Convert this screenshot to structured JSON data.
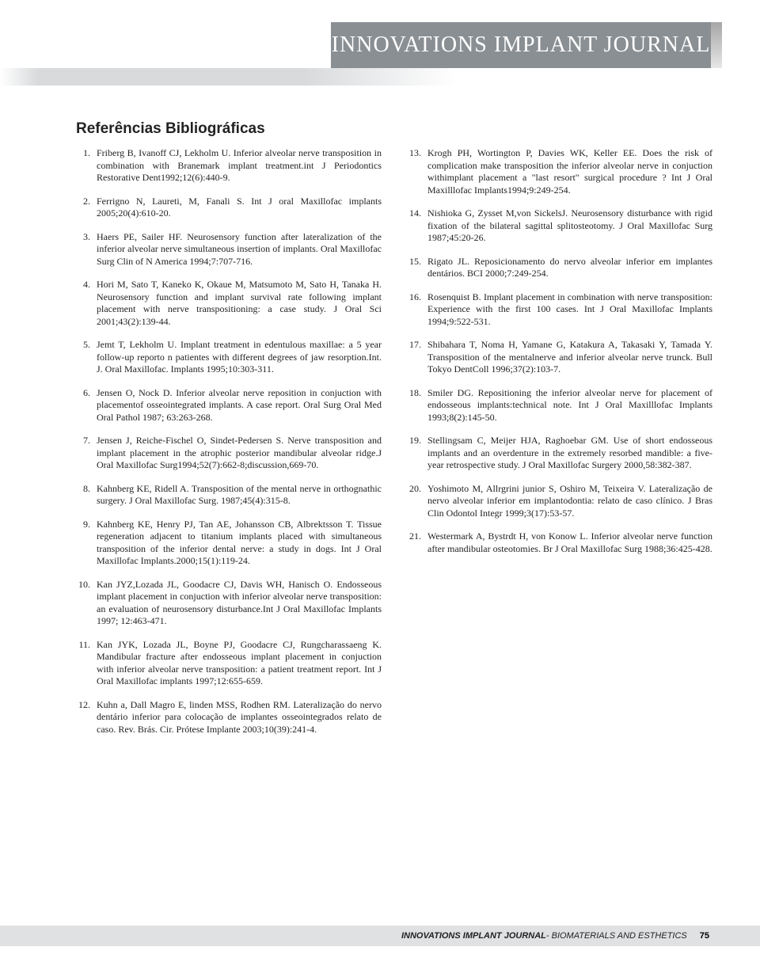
{
  "header": {
    "journal_title": "INNOVATIONS IMPLANT JOURNAL"
  },
  "section": {
    "title": "Referências Bibliográficas"
  },
  "references_col1": [
    {
      "n": "1.",
      "t": "Friberg B, Ivanoff CJ, Lekholm U. Inferior alveolar nerve transposition in combination with Branemark implant treatment.int J Periodontics Restorative Dent1992;12(6):440-9."
    },
    {
      "n": "2.",
      "t": "Ferrigno N, Laureti, M, Fanali S. Int J oral Maxillofac implants 2005;20(4):610-20."
    },
    {
      "n": "3.",
      "t": "Haers PE, Sailer HF. Neurosensory function after lateralization of the inferior alveolar nerve simultaneous insertion of implants. Oral Maxillofac Surg Clin of N America 1994;7:707-716."
    },
    {
      "n": "4.",
      "t": "Hori M, Sato T, Kaneko K, Okaue M, Matsumoto M, Sato H, Tanaka H. Neurosensory function and implant survival rate following implant placement with nerve transpositioning: a case study. J Oral Sci 2001;43(2):139-44."
    },
    {
      "n": "5.",
      "t": "Jemt T, Lekholm U. Implant treatment in edentulous maxillae: a 5 year follow-up reporto n patientes with different degrees of jaw resorption.Int. J. Oral Maxillofac. Implants 1995;10:303-311."
    },
    {
      "n": "6.",
      "t": "Jensen O, Nock D. Inferior alveolar nerve reposition in conjuction with placementof osseointegrated implants. A case report. Oral Surg Oral Med Oral Pathol 1987; 63:263-268."
    },
    {
      "n": "7.",
      "t": "Jensen J, Reiche-Fischel O, Sindet-Pedersen S. Nerve transposition and implant placement in the atrophic posterior mandibular alveolar ridge.J Oral Maxillofac Surg1994;52(7):662-8;discussion,669-70."
    },
    {
      "n": "8.",
      "t": "Kahnberg KE, Ridell A. Transposition of the mental nerve in orthognathic surgery. J Oral Maxillofac Surg. 1987;45(4):315-8."
    },
    {
      "n": "9.",
      "t": "Kahnberg KE, Henry PJ, Tan AE, Johansson CB, Albrektsson T. Tissue regeneration adjacent to titanium implants placed with simultaneous transposition of the inferior dental nerve: a study in dogs. Int J Oral Maxillofac Implants.2000;15(1):119-24."
    }
  ],
  "references_col2": [
    {
      "n": "13.",
      "t": "Krogh PH, Wortington P, Davies WK, Keller EE. Does the risk of complication make transposition the inferior alveolar nerve in conjuction withimplant placement a \"last resort\" surgical procedure ? Int J Oral Maxilllofac Implants1994;9:249-254."
    },
    {
      "n": "14.",
      "t": "Nishioka G, Zysset M,von SickelsJ. Neurosensory disturbance with rigid fixation of the bilateral sagittal splitosteotomy. J Oral Maxillofac Surg 1987;45:20-26."
    },
    {
      "n": "15.",
      "t": "Rigato JL. Reposicionamento do nervo alveolar inferior em implantes dentários. BCI 2000;7:249-254."
    },
    {
      "n": "16.",
      "t": "Rosenquist B. Implant placement in combination with nerve transposition: Experience with the first 100 cases. Int J Oral Maxillofac Implants 1994;9:522-531."
    },
    {
      "n": "17.",
      "t": "Shibahara T, Noma H, Yamane G, Katakura A, Takasaki Y, Tamada Y. Transposition of the mentalnerve and inferior alveolar nerve trunck. Bull Tokyo DentColl 1996;37(2):103-7."
    },
    {
      "n": "18.",
      "t": "Smiler DG. Repositioning the inferior alveolar nerve for placement of endosseous implants:technical note. Int J Oral Maxilllofac Implants 1993;8(2):145-50."
    },
    {
      "n": "19.",
      "t": "Stellingsam C, Meijer HJA, Raghoebar GM. Use of short endosseous implants and an overdenture in the extremely resorbed mandible: a five-year retrospective study. J Oral Maxillofac Surgery 2000,58:382-387."
    },
    {
      "n": "20.",
      "t": "Yoshimoto M, Allrgrini junior S, Oshiro M, Teixeira V. Lateralização de nervo alveolar inferior em implantodontia: relato de caso clínico. J Bras Clin Odontol Integr 1999;3(17):53-57."
    },
    {
      "n": "21.",
      "t": "Westermark A, Bystrdt H, von Konow L. Inferior alveolar nerve function after mandibular osteotomies. Br J Oral Maxillofac Surg 1988;36:425-428."
    }
  ],
  "references_bottom": [
    {
      "n": "10.",
      "t": "Kan JYZ,Lozada JL, Goodacre CJ, Davis WH, Hanisch O. Endosseous implant placement in conjuction with inferior alveolar nerve transposition: an evaluation of neurosensory disturbance.Int J Oral Maxillofac Implants 1997; 12:463-471."
    },
    {
      "n": "11.",
      "t": "Kan JYK, Lozada JL, Boyne PJ, Goodacre CJ, Rungcharassaeng K. Mandibular fracture after endosseous implant placement in conjuction with inferior alveolar nerve transposition: a patient treatment report. Int J Oral Maxillofac implants 1997;12:655-659."
    },
    {
      "n": "12.",
      "t": "Kuhn a, Dall Magro E, linden MSS, Rodhen RM. Lateralização do nervo dentário inferior para colocação de implantes osseointegrados  relato de caso. Rev. Brás. Cir. Prótese Implante 2003;10(39):241-4."
    }
  ],
  "footer": {
    "bold": "INNOVATIONS IMPLANT JOURNAL",
    "rest": " - BIOMATERIALS AND ESTHETICS",
    "page": "75"
  }
}
